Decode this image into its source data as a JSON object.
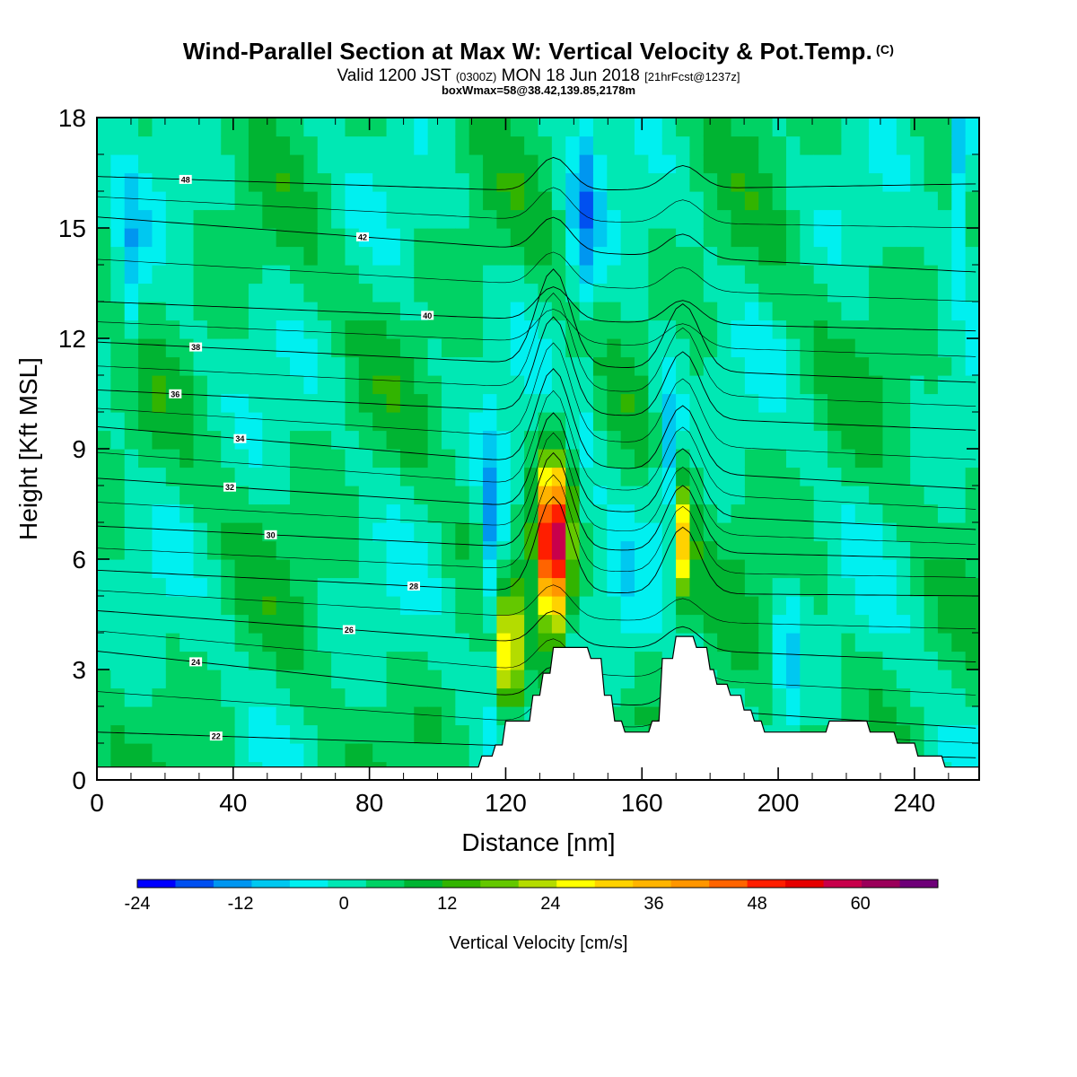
{
  "title": {
    "main": "Wind-Parallel Section at Max W: Vertical Velocity & Pot.Temp.",
    "mark": "(C)",
    "sub_a": "Valid 1200 JST",
    "sub_b": "(0300Z)",
    "sub_c": "MON 18 Jun 2018",
    "sub_d": "[21hrFcst@1237z]",
    "note": "boxWmax=58@38.42,139.85,2178m"
  },
  "chart_data": {
    "type": "heatmap",
    "xlabel": "Distance [nm]",
    "ylabel": "Height [Kft MSL]",
    "xlim": [
      0,
      259
    ],
    "ylim": [
      0,
      18
    ],
    "x_ticks": [
      0,
      40,
      80,
      120,
      160,
      200,
      240
    ],
    "y_ticks": [
      0,
      3,
      6,
      9,
      12,
      15,
      18
    ],
    "colorbar": {
      "label": "Vertical Velocity [cm/s]",
      "min": -24,
      "max": 69,
      "tick_values": [
        -24,
        -12,
        0,
        12,
        24,
        36,
        48,
        60
      ],
      "tick_labels": [
        "-24",
        "-12",
        "0",
        "12",
        "24",
        "36",
        "48",
        "60"
      ],
      "colors": [
        "#0000ff",
        "#0050f0",
        "#0096f0",
        "#00c8f0",
        "#00f0f0",
        "#00e8b4",
        "#00d264",
        "#00b432",
        "#32b400",
        "#64c800",
        "#b4dc00",
        "#ffff00",
        "#ffd200",
        "#ffb400",
        "#ff9600",
        "#ff6400",
        "#ff1e00",
        "#e60000",
        "#c8004b",
        "#9b005a",
        "#6e0078"
      ]
    },
    "background_value": 3,
    "updrafts": [
      {
        "x": 134,
        "z": 6.4,
        "w": 58
      },
      {
        "x": 121,
        "z": 3.4,
        "w": 28
      },
      {
        "x": 172,
        "z": 6.6,
        "w": 28
      }
    ],
    "downdrafts": [
      {
        "x": 116,
        "z": 6.5,
        "w": -18
      },
      {
        "x": 143,
        "z": 15.5,
        "w": -15
      },
      {
        "x": 168,
        "z": 9.0,
        "w": -14
      },
      {
        "x": 10,
        "z": 13.5,
        "w": -10
      },
      {
        "x": 254,
        "z": 17.0,
        "w": -20
      },
      {
        "x": 203,
        "z": 3.0,
        "w": -10
      },
      {
        "x": 155,
        "z": 4.5,
        "w": -4
      },
      {
        "x": 145,
        "z": 10.0,
        "w": -6
      }
    ],
    "theta_contours": [
      {
        "value": 22,
        "label": "22",
        "label_x": 35,
        "y_left": 1.3,
        "y_mid": 0.9,
        "y_right": 0.6
      },
      {
        "value": 24,
        "label": "24",
        "label_x": 29,
        "y_left": 3.5,
        "y_mid": 2.2,
        "y_right": 1.4
      },
      {
        "value": 26,
        "label": "26",
        "label_x": 74,
        "y_left": 4.6,
        "y_mid": 3.7,
        "y_right": 3.2
      },
      {
        "value": 28,
        "label": "28",
        "label_x": 93,
        "y_left": 5.7,
        "y_mid": 5.1,
        "y_right": 5.0
      },
      {
        "value": 30,
        "label": "30",
        "label_x": 51,
        "y_left": 6.9,
        "y_mid": 6.3,
        "y_right": 6.0
      },
      {
        "value": 32,
        "label": "32",
        "label_x": 39,
        "y_left": 8.2,
        "y_mid": 7.4,
        "y_right": 6.8
      },
      {
        "value": 34,
        "label": "34",
        "label_x": 42,
        "y_left": 9.6,
        "y_mid": 8.6,
        "y_right": 7.9
      },
      {
        "value": 36,
        "label": "36",
        "label_x": 23,
        "y_left": 10.6,
        "y_mid": 10.0,
        "y_right": 9.5
      },
      {
        "value": 38,
        "label": "38",
        "label_x": 29,
        "y_left": 11.9,
        "y_mid": 11.3,
        "y_right": 10.8
      },
      {
        "value": 40,
        "label": "40",
        "label_x": 97,
        "y_left": 13.0,
        "y_mid": 12.5,
        "y_right": 12.2
      },
      {
        "value": 42,
        "label": "42",
        "label_x": 78,
        "y_left": 15.3,
        "y_mid": 14.4,
        "y_right": 13.8
      },
      {
        "value": 48,
        "label": "48",
        "label_x": 26,
        "y_left": 16.4,
        "y_mid": 16.0,
        "y_right": 16.2
      }
    ],
    "terrain": [
      [
        0,
        0.35
      ],
      [
        112,
        0.35
      ],
      [
        113,
        0.65
      ],
      [
        116,
        0.65
      ],
      [
        117,
        0.95
      ],
      [
        119,
        0.95
      ],
      [
        120,
        1.6
      ],
      [
        127,
        1.6
      ],
      [
        128,
        2.3
      ],
      [
        130,
        2.3
      ],
      [
        131,
        2.9
      ],
      [
        133,
        2.9
      ],
      [
        134,
        3.6
      ],
      [
        144,
        3.6
      ],
      [
        145,
        3.3
      ],
      [
        148,
        3.3
      ],
      [
        149,
        2.3
      ],
      [
        151,
        2.3
      ],
      [
        152,
        1.6
      ],
      [
        154,
        1.6
      ],
      [
        155,
        1.3
      ],
      [
        162,
        1.3
      ],
      [
        163,
        1.6
      ],
      [
        165,
        1.6
      ],
      [
        166,
        3.3
      ],
      [
        169,
        3.3
      ],
      [
        170,
        3.9
      ],
      [
        175,
        3.9
      ],
      [
        176,
        3.6
      ],
      [
        179,
        3.6
      ],
      [
        180,
        3.0
      ],
      [
        181,
        3.0
      ],
      [
        182,
        2.6
      ],
      [
        185,
        2.6
      ],
      [
        186,
        2.3
      ],
      [
        189,
        2.3
      ],
      [
        190,
        1.9
      ],
      [
        192,
        1.9
      ],
      [
        193,
        1.6
      ],
      [
        195,
        1.6
      ],
      [
        196,
        1.3
      ],
      [
        214,
        1.3
      ],
      [
        215,
        1.6
      ],
      [
        226,
        1.6
      ],
      [
        227,
        1.3
      ],
      [
        234,
        1.3
      ],
      [
        235,
        1.0
      ],
      [
        240,
        1.0
      ],
      [
        241,
        0.65
      ],
      [
        248,
        0.65
      ],
      [
        249,
        0.35
      ],
      [
        259,
        0.35
      ]
    ]
  }
}
